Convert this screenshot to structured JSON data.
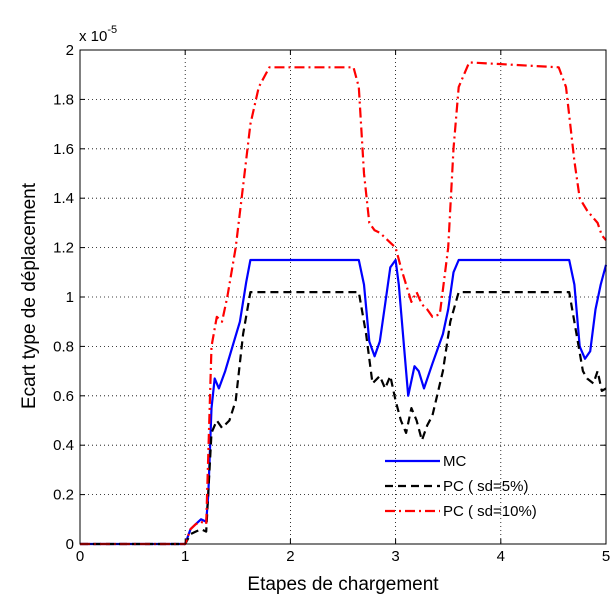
{
  "chart_data": {
    "type": "line",
    "title": "",
    "xlabel": "Etapes de chargement",
    "ylabel": "Ecart type de déplacement",
    "y_multiplier_label": "x 10",
    "y_multiplier_exponent": "-5",
    "xlim": [
      0,
      5
    ],
    "ylim": [
      0,
      2
    ],
    "grid": true,
    "legend_position": "bottom-right",
    "x_ticks": [
      "0",
      "1",
      "2",
      "3",
      "4",
      "5"
    ],
    "y_ticks": [
      "0",
      "0.2",
      "0.4",
      "0.6",
      "0.8",
      "1",
      "1.2",
      "1.4",
      "1.6",
      "1.8",
      "2"
    ],
    "series": [
      {
        "name": "MC",
        "color": "#0000ff",
        "style": "solid",
        "points": [
          [
            0,
            0
          ],
          [
            1.0,
            0
          ],
          [
            1.05,
            0.06
          ],
          [
            1.1,
            0.08
          ],
          [
            1.15,
            0.1
          ],
          [
            1.2,
            0.09
          ],
          [
            1.22,
            0.2
          ],
          [
            1.25,
            0.55
          ],
          [
            1.28,
            0.67
          ],
          [
            1.32,
            0.63
          ],
          [
            1.38,
            0.7
          ],
          [
            1.45,
            0.8
          ],
          [
            1.52,
            0.9
          ],
          [
            1.58,
            1.06
          ],
          [
            1.62,
            1.15
          ],
          [
            2.65,
            1.15
          ],
          [
            2.7,
            1.05
          ],
          [
            2.75,
            0.82
          ],
          [
            2.8,
            0.76
          ],
          [
            2.85,
            0.82
          ],
          [
            2.9,
            0.97
          ],
          [
            2.95,
            1.12
          ],
          [
            3.0,
            1.15
          ],
          [
            3.03,
            1.05
          ],
          [
            3.08,
            0.8
          ],
          [
            3.12,
            0.6
          ],
          [
            3.18,
            0.72
          ],
          [
            3.22,
            0.7
          ],
          [
            3.27,
            0.63
          ],
          [
            3.35,
            0.73
          ],
          [
            3.45,
            0.85
          ],
          [
            3.5,
            0.95
          ],
          [
            3.55,
            1.1
          ],
          [
            3.6,
            1.15
          ],
          [
            4.65,
            1.15
          ],
          [
            4.7,
            1.05
          ],
          [
            4.75,
            0.8
          ],
          [
            4.8,
            0.75
          ],
          [
            4.85,
            0.78
          ],
          [
            4.9,
            0.95
          ],
          [
            4.95,
            1.05
          ],
          [
            5.0,
            1.13
          ]
        ]
      },
      {
        "name": "PC ( sd=5%)",
        "color": "#000000",
        "style": "dashed",
        "points": [
          [
            0,
            0
          ],
          [
            1.0,
            0
          ],
          [
            1.05,
            0.04
          ],
          [
            1.1,
            0.05
          ],
          [
            1.15,
            0.06
          ],
          [
            1.2,
            0.05
          ],
          [
            1.25,
            0.45
          ],
          [
            1.3,
            0.5
          ],
          [
            1.35,
            0.47
          ],
          [
            1.42,
            0.5
          ],
          [
            1.48,
            0.58
          ],
          [
            1.55,
            0.85
          ],
          [
            1.62,
            1.02
          ],
          [
            2.65,
            1.02
          ],
          [
            2.72,
            0.85
          ],
          [
            2.78,
            0.65
          ],
          [
            2.85,
            0.68
          ],
          [
            2.9,
            0.63
          ],
          [
            2.95,
            0.68
          ],
          [
            3.0,
            0.58
          ],
          [
            3.05,
            0.5
          ],
          [
            3.1,
            0.45
          ],
          [
            3.15,
            0.55
          ],
          [
            3.2,
            0.5
          ],
          [
            3.25,
            0.42
          ],
          [
            3.3,
            0.48
          ],
          [
            3.35,
            0.52
          ],
          [
            3.45,
            0.7
          ],
          [
            3.52,
            0.9
          ],
          [
            3.6,
            1.02
          ],
          [
            4.65,
            1.02
          ],
          [
            4.72,
            0.85
          ],
          [
            4.78,
            0.7
          ],
          [
            4.82,
            0.67
          ],
          [
            4.88,
            0.65
          ],
          [
            4.92,
            0.7
          ],
          [
            4.96,
            0.62
          ],
          [
            5.0,
            0.63
          ]
        ]
      },
      {
        "name": "PC ( sd=10%)",
        "color": "#ff0000",
        "style": "dashdot",
        "points": [
          [
            0,
            0
          ],
          [
            1.0,
            0
          ],
          [
            1.05,
            0.06
          ],
          [
            1.1,
            0.08
          ],
          [
            1.15,
            0.09
          ],
          [
            1.2,
            0.08
          ],
          [
            1.25,
            0.8
          ],
          [
            1.3,
            0.92
          ],
          [
            1.35,
            0.9
          ],
          [
            1.4,
            1.0
          ],
          [
            1.48,
            1.2
          ],
          [
            1.55,
            1.45
          ],
          [
            1.62,
            1.7
          ],
          [
            1.7,
            1.85
          ],
          [
            1.8,
            1.93
          ],
          [
            2.6,
            1.93
          ],
          [
            2.65,
            1.85
          ],
          [
            2.7,
            1.5
          ],
          [
            2.75,
            1.3
          ],
          [
            2.8,
            1.27
          ],
          [
            2.85,
            1.26
          ],
          [
            2.9,
            1.24
          ],
          [
            2.95,
            1.22
          ],
          [
            3.0,
            1.2
          ],
          [
            3.05,
            1.12
          ],
          [
            3.1,
            1.05
          ],
          [
            3.15,
            0.98
          ],
          [
            3.2,
            1.02
          ],
          [
            3.25,
            0.97
          ],
          [
            3.3,
            0.95
          ],
          [
            3.35,
            0.92
          ],
          [
            3.42,
            0.93
          ],
          [
            3.5,
            1.2
          ],
          [
            3.55,
            1.6
          ],
          [
            3.6,
            1.85
          ],
          [
            3.7,
            1.95
          ],
          [
            4.55,
            1.93
          ],
          [
            4.62,
            1.85
          ],
          [
            4.7,
            1.55
          ],
          [
            4.75,
            1.4
          ],
          [
            4.82,
            1.35
          ],
          [
            4.88,
            1.32
          ],
          [
            4.92,
            1.3
          ],
          [
            4.96,
            1.25
          ],
          [
            5.0,
            1.23
          ]
        ]
      }
    ]
  }
}
